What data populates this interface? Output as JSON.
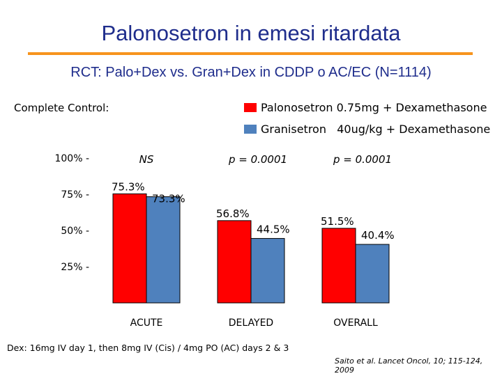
{
  "slide": {
    "title": "Palonosetron in emesi ritardata",
    "subtitle": "RCT: Palo+Dex vs. Gran+Dex in CDDP o AC/EC (N=1114)",
    "side_label": "Complete Control:",
    "footnote": "Dex: 16mg IV day 1, then 8mg IV (Cis) / 4mg PO (AC) days 2 & 3",
    "citation": "Saito et al.  Lancet Oncol, 10; 115-124, 2009"
  },
  "colors": {
    "title": "#1f2d8c",
    "rule": "#f7941d",
    "palonosetron": "#ff0000",
    "granisetron": "#4f81bd"
  },
  "chart_data": {
    "type": "bar",
    "title": "Complete Control",
    "categories": [
      "ACUTE",
      "DELAYED",
      "OVERALL"
    ],
    "series": [
      {
        "name": "Palonosetron 0.75mg + Dexamethasone",
        "values": [
          75.3,
          56.8,
          51.5
        ]
      },
      {
        "name": "Granisetron   40ug/kg + Dexamethasone",
        "values": [
          73.3,
          44.5,
          40.4
        ]
      }
    ],
    "value_labels": [
      [
        "75.3%",
        "73.3%"
      ],
      [
        "56.8%",
        "44.5%"
      ],
      [
        "51.5%",
        "40.4%"
      ]
    ],
    "significance": [
      "NS",
      "p = 0.0001",
      "p = 0.0001"
    ],
    "y_ticks": [
      100,
      75,
      50,
      25
    ],
    "y_tick_labels": [
      "100% -",
      "75% -",
      "50% -",
      "25% -"
    ],
    "ylim": [
      0,
      100
    ],
    "legend_position": "top-right",
    "grid": false
  }
}
